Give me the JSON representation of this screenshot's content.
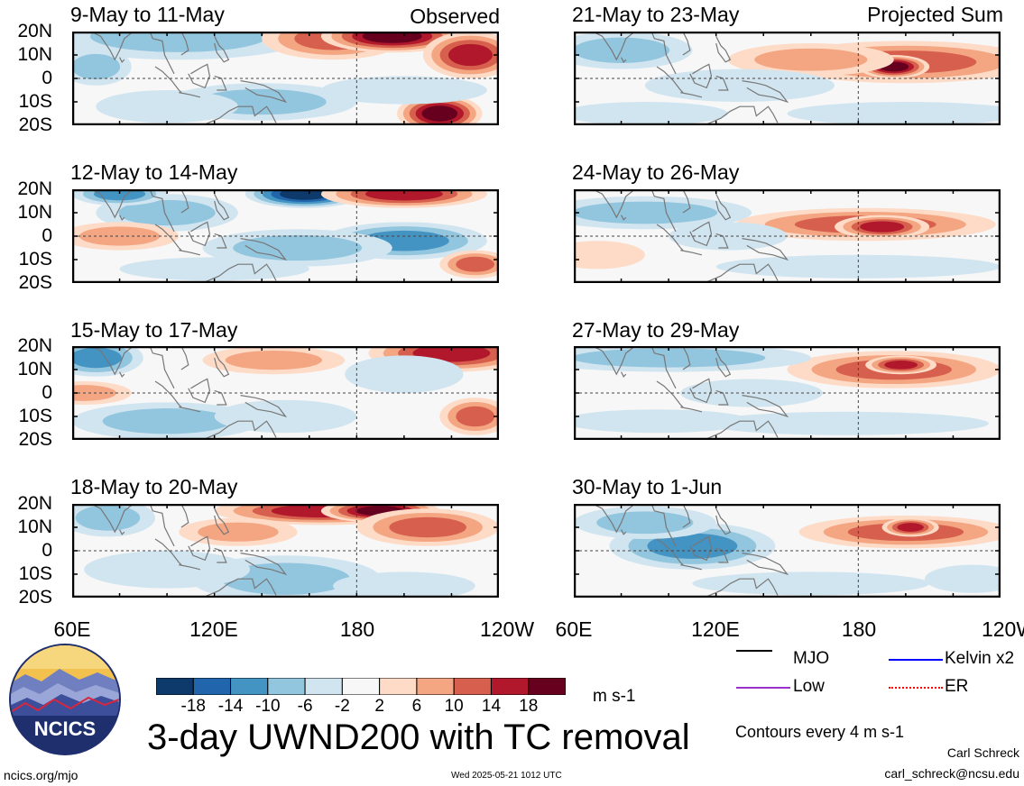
{
  "panels": [
    {
      "title": "9-May to 11-May",
      "corner": "Observed",
      "blobs": [
        {
          "lon": 105,
          "lat": 18,
          "w": 55,
          "h": 10,
          "v": -6
        },
        {
          "lon": 170,
          "lat": 17,
          "w": 30,
          "h": 9,
          "v": 10
        },
        {
          "lon": 195,
          "lat": 18,
          "w": 30,
          "h": 7,
          "v": 18
        },
        {
          "lon": 228,
          "lat": 10,
          "w": 20,
          "h": 10,
          "v": 14
        },
        {
          "lon": 215,
          "lat": -15,
          "w": 18,
          "h": 8,
          "v": 18
        },
        {
          "lon": 140,
          "lat": -10,
          "w": 40,
          "h": 8,
          "v": -6
        },
        {
          "lon": 100,
          "lat": -12,
          "w": 30,
          "h": 7,
          "v": -4
        },
        {
          "lon": 70,
          "lat": 5,
          "w": 15,
          "h": 8,
          "v": -6
        },
        {
          "lon": 200,
          "lat": -5,
          "w": 35,
          "h": 6,
          "v": -4
        }
      ]
    },
    {
      "title": "21-May to 23-May",
      "corner": "Projected Sum",
      "blobs": [
        {
          "lon": 200,
          "lat": 7,
          "w": 55,
          "h": 9,
          "v": 10
        },
        {
          "lon": 195,
          "lat": 5,
          "w": 15,
          "h": 5,
          "v": 18
        },
        {
          "lon": 160,
          "lat": 8,
          "w": 35,
          "h": 7,
          "v": 6
        },
        {
          "lon": 80,
          "lat": 12,
          "w": 30,
          "h": 8,
          "v": -6
        },
        {
          "lon": 130,
          "lat": -3,
          "w": 40,
          "h": 7,
          "v": -4
        },
        {
          "lon": 200,
          "lat": -15,
          "w": 50,
          "h": 5,
          "v": -2
        },
        {
          "lon": 90,
          "lat": -15,
          "w": 35,
          "h": 5,
          "v": -2
        }
      ]
    },
    {
      "title": "12-May to 14-May",
      "corner": "",
      "blobs": [
        {
          "lon": 158,
          "lat": 18,
          "w": 25,
          "h": 6,
          "v": -18
        },
        {
          "lon": 200,
          "lat": 18,
          "w": 35,
          "h": 6,
          "v": 14
        },
        {
          "lon": 100,
          "lat": 10,
          "w": 30,
          "h": 8,
          "v": -6
        },
        {
          "lon": 80,
          "lat": 18,
          "w": 20,
          "h": 5,
          "v": -10
        },
        {
          "lon": 200,
          "lat": -2,
          "w": 35,
          "h": 8,
          "v": -10
        },
        {
          "lon": 155,
          "lat": -5,
          "w": 40,
          "h": 8,
          "v": -6
        },
        {
          "lon": 230,
          "lat": -12,
          "w": 15,
          "h": 6,
          "v": 10
        },
        {
          "lon": 80,
          "lat": 0,
          "w": 25,
          "h": 6,
          "v": 6
        },
        {
          "lon": 120,
          "lat": -14,
          "w": 40,
          "h": 5,
          "v": -4
        }
      ]
    },
    {
      "title": "24-May to 26-May",
      "corner": "",
      "blobs": [
        {
          "lon": 183,
          "lat": 5,
          "w": 55,
          "h": 7,
          "v": 10
        },
        {
          "lon": 190,
          "lat": 4,
          "w": 20,
          "h": 5,
          "v": 14
        },
        {
          "lon": 90,
          "lat": 10,
          "w": 45,
          "h": 7,
          "v": -6
        },
        {
          "lon": 125,
          "lat": 0,
          "w": 25,
          "h": 6,
          "v": -4
        },
        {
          "lon": 180,
          "lat": -13,
          "w": 60,
          "h": 5,
          "v": -2
        },
        {
          "lon": 70,
          "lat": -8,
          "w": 20,
          "h": 6,
          "v": 2
        }
      ]
    },
    {
      "title": "15-May to 17-May",
      "corner": "",
      "blobs": [
        {
          "lon": 220,
          "lat": 17,
          "w": 35,
          "h": 8,
          "v": 14
        },
        {
          "lon": 70,
          "lat": 15,
          "w": 20,
          "h": 8,
          "v": -10
        },
        {
          "lon": 100,
          "lat": -12,
          "w": 40,
          "h": 8,
          "v": -6
        },
        {
          "lon": 65,
          "lat": 0,
          "w": 20,
          "h": 5,
          "v": 6
        },
        {
          "lon": 200,
          "lat": 8,
          "w": 25,
          "h": 8,
          "v": -4
        },
        {
          "lon": 230,
          "lat": -10,
          "w": 15,
          "h": 8,
          "v": 10
        },
        {
          "lon": 150,
          "lat": -10,
          "w": 30,
          "h": 7,
          "v": -4
        },
        {
          "lon": 145,
          "lat": 14,
          "w": 30,
          "h": 6,
          "v": 6
        }
      ]
    },
    {
      "title": "27-May to 29-May",
      "corner": "",
      "blobs": [
        {
          "lon": 195,
          "lat": 10,
          "w": 45,
          "h": 8,
          "v": 10
        },
        {
          "lon": 198,
          "lat": 12,
          "w": 15,
          "h": 4,
          "v": 14
        },
        {
          "lon": 100,
          "lat": 15,
          "w": 60,
          "h": 6,
          "v": -6
        },
        {
          "lon": 135,
          "lat": 0,
          "w": 30,
          "h": 6,
          "v": -4
        },
        {
          "lon": 95,
          "lat": -12,
          "w": 40,
          "h": 5,
          "v": -4
        },
        {
          "lon": 175,
          "lat": -13,
          "w": 60,
          "h": 5,
          "v": -2
        }
      ]
    },
    {
      "title": "18-May to 20-May",
      "corner": "",
      "blobs": [
        {
          "lon": 165,
          "lat": 17,
          "w": 45,
          "h": 6,
          "v": 14
        },
        {
          "lon": 190,
          "lat": 17,
          "w": 25,
          "h": 5,
          "v": 18
        },
        {
          "lon": 210,
          "lat": 10,
          "w": 30,
          "h": 8,
          "v": 10
        },
        {
          "lon": 75,
          "lat": 14,
          "w": 20,
          "h": 8,
          "v": -6
        },
        {
          "lon": 150,
          "lat": -12,
          "w": 40,
          "h": 10,
          "v": -6
        },
        {
          "lon": 100,
          "lat": -8,
          "w": 35,
          "h": 8,
          "v": -4
        },
        {
          "lon": 200,
          "lat": -15,
          "w": 30,
          "h": 6,
          "v": -4
        },
        {
          "lon": 130,
          "lat": 8,
          "w": 25,
          "h": 6,
          "v": 6
        }
      ]
    },
    {
      "title": "30-May to 1-Jun",
      "corner": "",
      "blobs": [
        {
          "lon": 200,
          "lat": 8,
          "w": 45,
          "h": 7,
          "v": 10
        },
        {
          "lon": 202,
          "lat": 10,
          "w": 12,
          "h": 4,
          "v": 14
        },
        {
          "lon": 110,
          "lat": 2,
          "w": 35,
          "h": 10,
          "v": -10
        },
        {
          "lon": 90,
          "lat": 12,
          "w": 30,
          "h": 7,
          "v": -6
        },
        {
          "lon": 160,
          "lat": -14,
          "w": 50,
          "h": 5,
          "v": -2
        },
        {
          "lon": 228,
          "lat": -12,
          "w": 20,
          "h": 6,
          "v": -2
        }
      ]
    }
  ],
  "yticks": [
    "20N",
    "10N",
    "0",
    "10S",
    "20S"
  ],
  "xticks": [
    "60E",
    "120E",
    "180",
    "120W"
  ],
  "colorbar": {
    "labels": [
      "-18",
      "-14",
      "-10",
      "-6",
      "-2",
      "2",
      "6",
      "10",
      "14",
      "18"
    ],
    "colors": [
      "#0d3a6b",
      "#2166ac",
      "#4393c3",
      "#92c5de",
      "#d1e5f0",
      "#f7f7f7",
      "#fddbc7",
      "#f4a582",
      "#d6604d",
      "#b2182b",
      "#67001f"
    ],
    "units": "m s-1"
  },
  "main_title": "3-day UWND200 with TC removal",
  "legend": [
    {
      "label": "MJO",
      "color": "#000000",
      "style": "solid"
    },
    {
      "label": "Kelvin x2",
      "color": "#0000ff",
      "style": "solid"
    },
    {
      "label": "Low",
      "color": "#9933cc",
      "style": "solid"
    },
    {
      "label": "ER",
      "color": "#ff0000",
      "style": "dotted"
    }
  ],
  "contour_note": "Contours every 4 m s-1",
  "logo_text": "NCICS",
  "footer_left": "ncics.org/mjo",
  "footer_center": "Wed 2025-05-21 1012 UTC",
  "credit_name": "Carl Schreck",
  "credit_email": "carl_schreck@ncsu.edu"
}
